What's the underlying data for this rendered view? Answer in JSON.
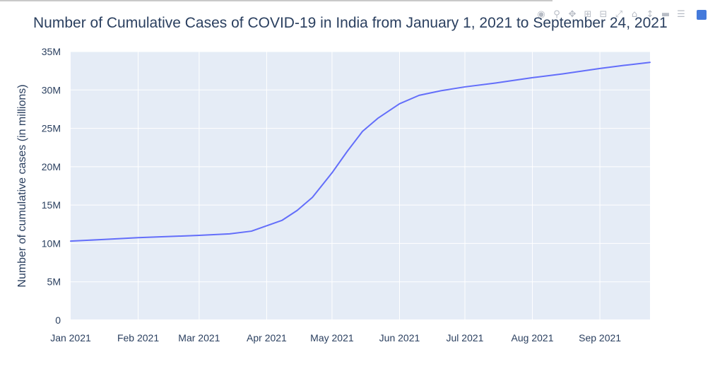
{
  "chart_data": {
    "type": "line",
    "title": "Number of Cumulative Cases of COVID-19 in India from January 1, 2021 to September 24, 2021",
    "xlabel": "",
    "ylabel": "Number of cumulative cases (in millions)",
    "x_tick_labels": [
      "Jan 2021",
      "Feb 2021",
      "Mar 2021",
      "Apr 2021",
      "May 2021",
      "Jun 2021",
      "Jul 2021",
      "Aug 2021",
      "Sep 2021"
    ],
    "y_tick_labels": [
      "0",
      "5M",
      "10M",
      "15M",
      "20M",
      "25M",
      "30M",
      "35M"
    ],
    "ylim": [
      0,
      35000000
    ],
    "xlim": [
      "2021-01-01",
      "2021-09-24"
    ],
    "grid": true,
    "series": [
      {
        "color": "#636efa",
        "points": [
          [
            "2021-01-01",
            10300000
          ],
          [
            "2021-01-15",
            10500000
          ],
          [
            "2021-02-01",
            10750000
          ],
          [
            "2021-02-15",
            10900000
          ],
          [
            "2021-03-01",
            11050000
          ],
          [
            "2021-03-15",
            11250000
          ],
          [
            "2021-03-25",
            11600000
          ],
          [
            "2021-04-01",
            12300000
          ],
          [
            "2021-04-08",
            13000000
          ],
          [
            "2021-04-15",
            14300000
          ],
          [
            "2021-04-22",
            16000000
          ],
          [
            "2021-05-01",
            19200000
          ],
          [
            "2021-05-08",
            22000000
          ],
          [
            "2021-05-15",
            24600000
          ],
          [
            "2021-05-22",
            26300000
          ],
          [
            "2021-06-01",
            28200000
          ],
          [
            "2021-06-10",
            29300000
          ],
          [
            "2021-06-20",
            29900000
          ],
          [
            "2021-07-01",
            30400000
          ],
          [
            "2021-07-15",
            30900000
          ],
          [
            "2021-08-01",
            31600000
          ],
          [
            "2021-08-15",
            32100000
          ],
          [
            "2021-09-01",
            32800000
          ],
          [
            "2021-09-12",
            33200000
          ],
          [
            "2021-09-24",
            33600000
          ]
        ]
      }
    ]
  },
  "modebar": {
    "icons": [
      "camera-icon",
      "zoom-icon",
      "pan-icon",
      "zoom-in-icon",
      "zoom-out-icon",
      "autoscale-icon",
      "reset-axes-icon",
      "spike-lines-icon",
      "hover-closest-icon",
      "hover-compare-icon",
      "plotly-logo-icon"
    ]
  }
}
